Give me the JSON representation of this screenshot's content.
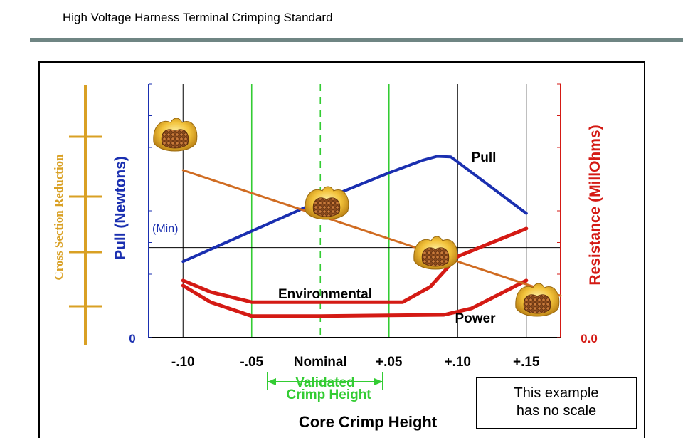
{
  "page": {
    "title": "High Voltage Harness Terminal Crimping Standard"
  },
  "chart_data": {
    "type": "line",
    "title": "",
    "xlabel": "Core Crimp Height",
    "ylabel_left": "Pull (Newtons)",
    "ylabel_right": "Resistance (MillOhms)",
    "ylabel_far_left": "Cross Section Reduction",
    "x_ticks": [
      "-.10",
      "-.05",
      "Nominal",
      "+.05",
      "+.10",
      "+.15"
    ],
    "x_tick_values": [
      -0.1,
      -0.05,
      0.0,
      0.05,
      0.1,
      0.15
    ],
    "xlim": [
      -0.125,
      0.175
    ],
    "y_left_origin_label": "0",
    "y_right_origin_label": "0.0",
    "min_label": "(Min)",
    "validated_label_line1": "Validated",
    "validated_label_line2": "Crimp Height",
    "validated_range": [
      -0.05,
      0.05
    ],
    "series": [
      {
        "name": "Pull",
        "color": "#1a2fb0",
        "points": [
          [
            -0.1,
            0.3
          ],
          [
            -0.05,
            0.42
          ],
          [
            0.0,
            0.54
          ],
          [
            0.05,
            0.65
          ],
          [
            0.075,
            0.7
          ],
          [
            0.085,
            0.715
          ],
          [
            0.095,
            0.713
          ],
          [
            0.15,
            0.49
          ]
        ]
      },
      {
        "name": "Environmental",
        "color": "#d41a14",
        "points": [
          [
            -0.1,
            0.225
          ],
          [
            -0.08,
            0.18
          ],
          [
            -0.05,
            0.14
          ],
          [
            0.0,
            0.14
          ],
          [
            0.06,
            0.14
          ],
          [
            0.08,
            0.2
          ],
          [
            0.1,
            0.32
          ],
          [
            0.15,
            0.43
          ]
        ]
      },
      {
        "name": "Power",
        "color": "#d41a14",
        "points": [
          [
            -0.1,
            0.205
          ],
          [
            -0.08,
            0.14
          ],
          [
            -0.05,
            0.085
          ],
          [
            0.0,
            0.085
          ],
          [
            0.09,
            0.09
          ],
          [
            0.11,
            0.115
          ],
          [
            0.15,
            0.225
          ]
        ]
      },
      {
        "name": "",
        "color": "#d06c22",
        "points": [
          [
            -0.1,
            0.66
          ],
          [
            0.175,
            0.165
          ]
        ]
      }
    ],
    "grid": true,
    "min_line_value": 0.355,
    "note_line1": "This example",
    "note_line2": "has no scale",
    "colors": {
      "pull": "#1a2fb0",
      "resistance": "#d41a14",
      "cross_section": "#d9a024",
      "crimp_line": "#d06c22",
      "validated": "#33cc33",
      "grid": "#000000"
    },
    "icons": [
      "crimp-cross-section-icon",
      "crimp-cross-section-icon",
      "crimp-cross-section-icon",
      "crimp-cross-section-icon"
    ]
  }
}
